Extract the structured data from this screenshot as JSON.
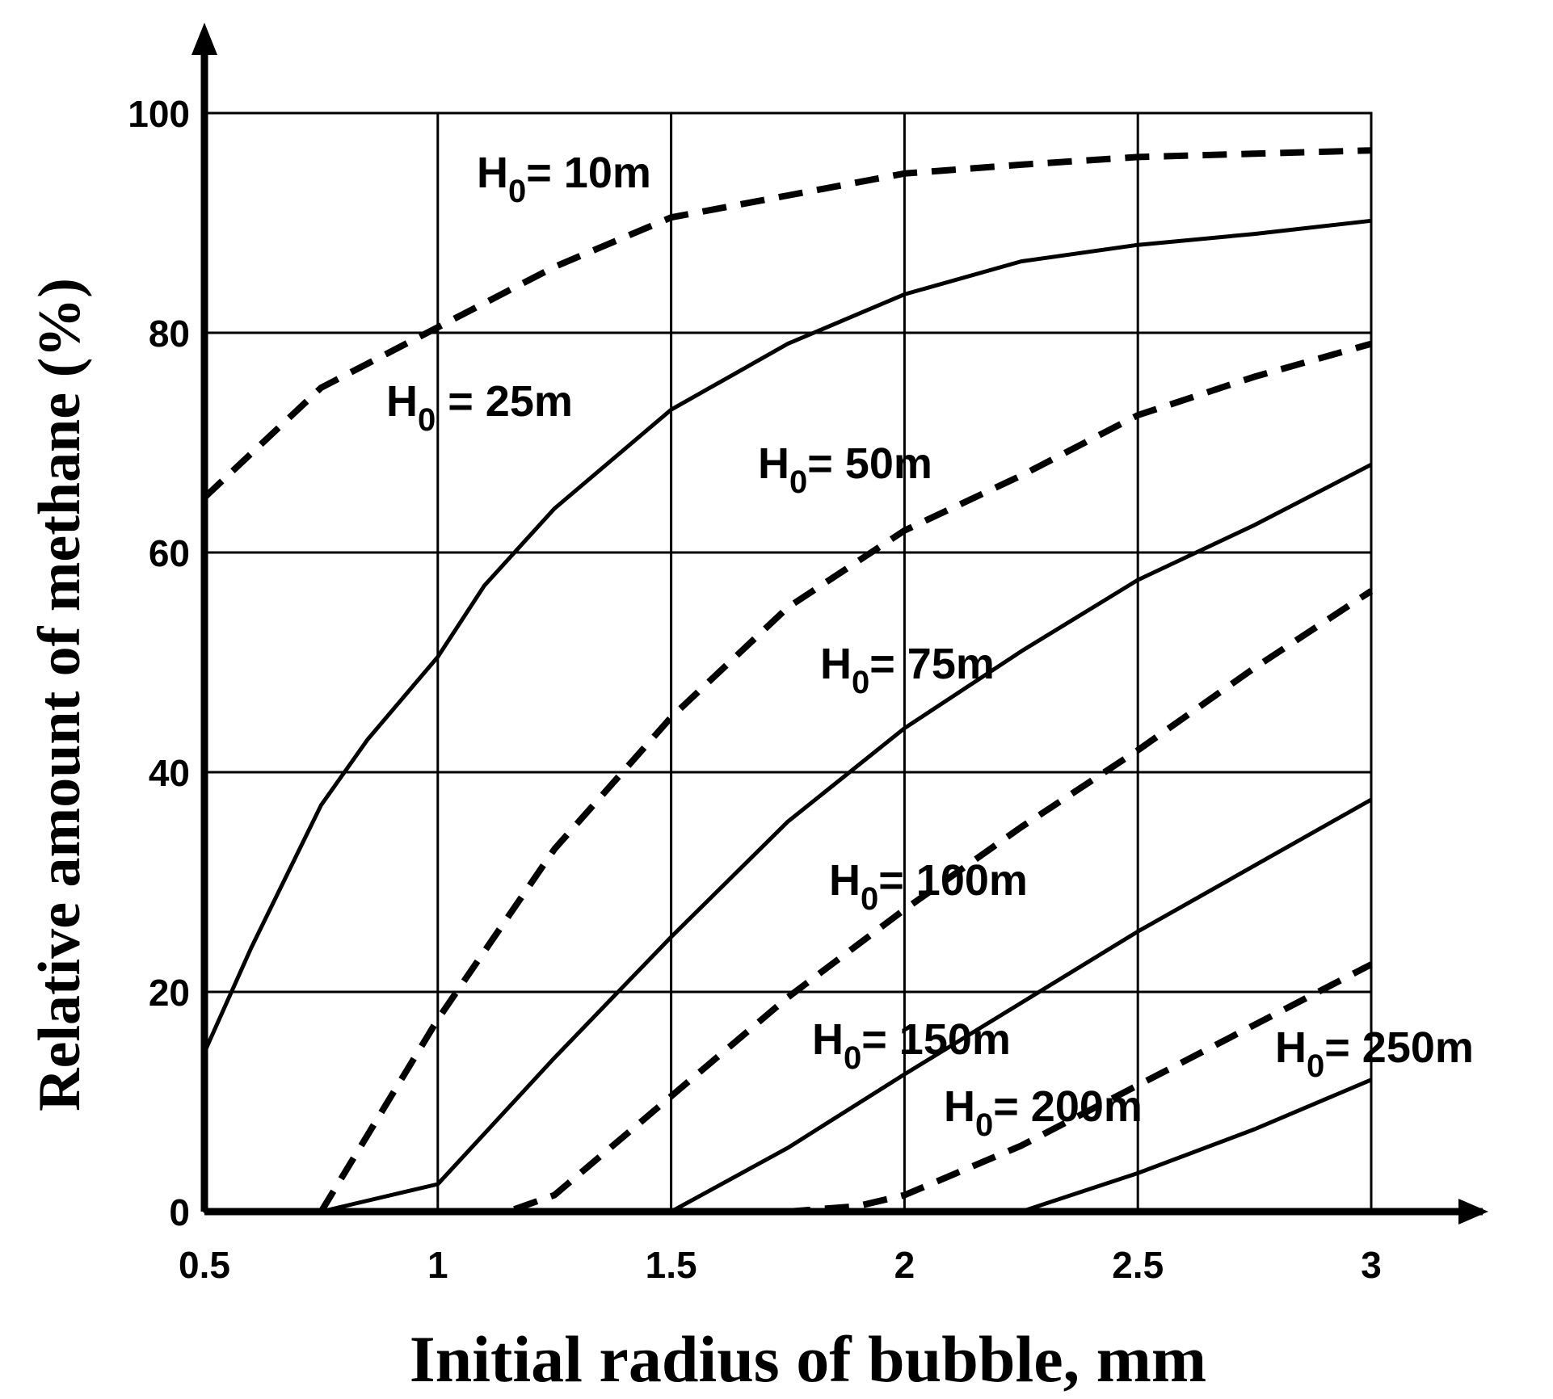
{
  "chart_data": {
    "type": "line",
    "xlabel": "Initial radius of bubble, mm",
    "ylabel": "Relative amount of methane  (%)",
    "xlim": [
      0.5,
      3
    ],
    "ylim": [
      0,
      100
    ],
    "x_ticks": [
      "0.5",
      "1",
      "1.5",
      "2",
      "2.5",
      "3"
    ],
    "y_ticks": [
      "0",
      "20",
      "40",
      "60",
      "80",
      "100"
    ],
    "grid": true,
    "series": [
      {
        "name": "H0= 10m",
        "label_main": "H",
        "label_sub": "0",
        "label_rest": "= 10m",
        "style": "dashed",
        "x": [
          0.5,
          0.75,
          1.0,
          1.25,
          1.5,
          1.75,
          2.0,
          2.25,
          2.5,
          2.75,
          3.0
        ],
        "y": [
          65,
          75,
          80.5,
          86,
          90.5,
          92.5,
          94.5,
          95.3,
          96,
          96.3,
          96.6
        ]
      },
      {
        "name": "H0 = 25m",
        "label_main": "H",
        "label_sub": "0",
        "label_rest": " = 25m",
        "style": "solid",
        "x": [
          0.5,
          0.6,
          0.75,
          0.85,
          1.0,
          1.1,
          1.25,
          1.5,
          1.75,
          2.0,
          2.25,
          2.5,
          2.75,
          3.0
        ],
        "y": [
          14.5,
          24,
          37,
          43,
          50.5,
          57,
          64,
          73,
          79,
          83.5,
          86.5,
          88,
          89,
          90.2
        ]
      },
      {
        "name": "H0= 50m",
        "label_main": "H",
        "label_sub": "0",
        "label_rest": "= 50m",
        "style": "dashed",
        "x": [
          0.5,
          0.6,
          0.75,
          1.0,
          1.25,
          1.5,
          1.75,
          2.0,
          2.25,
          2.5,
          2.75,
          3.0
        ],
        "y": [
          0,
          0,
          0,
          17.5,
          33,
          45,
          55,
          62,
          67,
          72.5,
          76,
          79
        ]
      },
      {
        "name": "H0= 75m",
        "label_main": "H",
        "label_sub": "0",
        "label_rest": "= 75m",
        "style": "solid",
        "x": [
          0.5,
          0.75,
          1.0,
          1.25,
          1.5,
          1.75,
          2.0,
          2.25,
          2.5,
          2.75,
          3.0
        ],
        "y": [
          0,
          0,
          2.5,
          14,
          25,
          35.5,
          44,
          51,
          57.5,
          62.5,
          68
        ]
      },
      {
        "name": "H0= 100m",
        "label_main": "H",
        "label_sub": "0",
        "label_rest": "= 100m",
        "style": "dashed",
        "x": [
          0.5,
          1.0,
          1.15,
          1.25,
          1.5,
          1.75,
          2.0,
          2.25,
          2.5,
          2.75,
          3.0
        ],
        "y": [
          0,
          0,
          0,
          1.5,
          10.5,
          19.5,
          27.5,
          35,
          42,
          49.5,
          56.5
        ]
      },
      {
        "name": "H0= 150m",
        "label_main": "H",
        "label_sub": "0",
        "label_rest": "= 150m",
        "style": "solid",
        "x": [
          0.5,
          1.5,
          1.75,
          2.0,
          2.25,
          2.5,
          2.75,
          3.0
        ],
        "y": [
          0,
          0,
          5.8,
          12.5,
          19,
          25.5,
          31.5,
          37.5
        ]
      },
      {
        "name": "H0= 200m",
        "label_main": "H",
        "label_sub": "0",
        "label_rest": "= 200m",
        "style": "dashed",
        "x": [
          0.5,
          1.75,
          1.9,
          2.0,
          2.25,
          2.5,
          2.75,
          3.0
        ],
        "y": [
          0,
          0,
          0.5,
          1.5,
          6,
          11.5,
          17,
          22.5
        ]
      },
      {
        "name": "H0= 250m",
        "label_main": "H",
        "label_sub": "0",
        "label_rest": "= 250m",
        "style": "solid",
        "x": [
          0.5,
          2.25,
          2.5,
          2.75,
          3.0
        ],
        "y": [
          0,
          0,
          3.5,
          7.5,
          12
        ]
      }
    ]
  }
}
